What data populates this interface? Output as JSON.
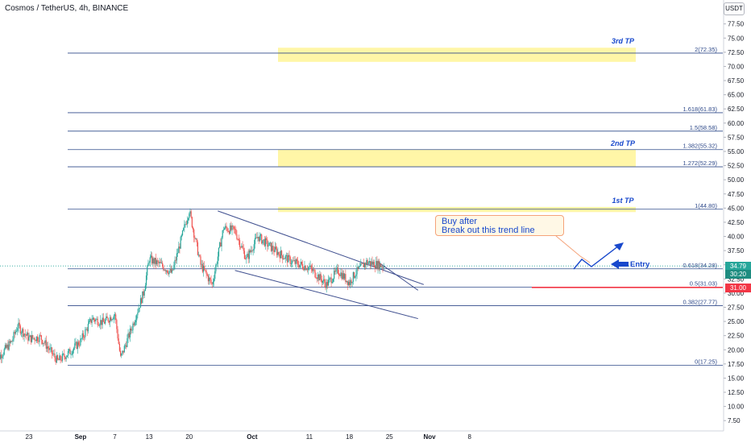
{
  "header": {
    "title": "Cosmos / TetherUS, 4h, BINANCE",
    "currency": "USDT"
  },
  "colors": {
    "up_candle": "#26a69a",
    "down_candle": "#ef5350",
    "fib_line": "#2f4a8a",
    "tp_zone": "#fff59d",
    "support_line": "#f23645",
    "channel_line": "#3f4f8f",
    "annotation_text": "#1848cc",
    "entry_arrow": "#1848cc",
    "last_price_bg": "#26a69a",
    "countdown_bg": "#1e8c80",
    "support_tag_bg": "#f23645"
  },
  "chart_data": {
    "type": "candlestick",
    "title": "Cosmos / TetherUS, 4h, BINANCE",
    "y_axis": {
      "ticks": [
        "77.50",
        "75.00",
        "72.50",
        "70.00",
        "67.50",
        "65.00",
        "62.50",
        "60.00",
        "57.50",
        "55.00",
        "52.50",
        "50.00",
        "47.50",
        "45.00",
        "42.50",
        "40.00",
        "37.50",
        "35.00",
        "32.50",
        "30.00",
        "27.50",
        "25.00",
        "22.50",
        "20.00",
        "17.50",
        "15.00",
        "12.50",
        "10.00",
        "7.50"
      ],
      "range": [
        6,
        80
      ]
    },
    "x_axis": {
      "ticks": [
        "23",
        "Sep",
        "7",
        "13",
        "20",
        "Oct",
        "11",
        "18",
        "25",
        "Nov",
        "8"
      ],
      "date_range": [
        "2021-08-23",
        "2021-11-08"
      ]
    },
    "price_path": [
      {
        "date": "2021-08-17",
        "price": 17.8
      },
      {
        "date": "2021-08-20",
        "price": 21.5
      },
      {
        "date": "2021-08-21",
        "price": 24.2
      },
      {
        "date": "2021-08-23",
        "price": 22.0
      },
      {
        "date": "2021-08-25",
        "price": 22.2
      },
      {
        "date": "2021-08-28",
        "price": 18.0
      },
      {
        "date": "2021-08-30",
        "price": 19.5
      },
      {
        "date": "2021-09-01",
        "price": 21.5
      },
      {
        "date": "2021-09-03",
        "price": 25.5
      },
      {
        "date": "2021-09-05",
        "price": 24.8
      },
      {
        "date": "2021-09-07",
        "price": 26.3
      },
      {
        "date": "2021-09-08",
        "price": 18.5
      },
      {
        "date": "2021-09-10",
        "price": 24.0
      },
      {
        "date": "2021-09-12",
        "price": 30.0
      },
      {
        "date": "2021-09-13",
        "price": 36.0
      },
      {
        "date": "2021-09-15",
        "price": 35.0
      },
      {
        "date": "2021-09-17",
        "price": 33.5
      },
      {
        "date": "2021-09-19",
        "price": 41.0
      },
      {
        "date": "2021-09-20",
        "price": 44.6
      },
      {
        "date": "2021-09-22",
        "price": 35.0
      },
      {
        "date": "2021-09-24",
        "price": 31.5
      },
      {
        "date": "2021-09-26",
        "price": 41.5
      },
      {
        "date": "2021-09-28",
        "price": 41.0
      },
      {
        "date": "2021-09-30",
        "price": 36.0
      },
      {
        "date": "2021-10-02",
        "price": 40.0
      },
      {
        "date": "2021-10-05",
        "price": 37.5
      },
      {
        "date": "2021-10-08",
        "price": 35.5
      },
      {
        "date": "2021-10-11",
        "price": 34.5
      },
      {
        "date": "2021-10-14",
        "price": 31.5
      },
      {
        "date": "2021-10-16",
        "price": 34.0
      },
      {
        "date": "2021-10-18",
        "price": 31.8
      },
      {
        "date": "2021-10-19",
        "price": 33.5
      },
      {
        "date": "2021-10-21",
        "price": 35.5
      },
      {
        "date": "2021-10-23",
        "price": 35.0
      },
      {
        "date": "2021-10-24",
        "price": 34.8
      }
    ],
    "last_price": "34.79",
    "countdown": "30:20",
    "fib_levels": [
      {
        "label": "2(72.35)",
        "price": 72.35
      },
      {
        "label": "1.618(61.83)",
        "price": 61.83
      },
      {
        "label": "1.5(58.58)",
        "price": 58.58
      },
      {
        "label": "1.382(55.32)",
        "price": 55.32
      },
      {
        "label": "1.272(52.29)",
        "price": 52.29
      },
      {
        "label": "1(44.80)",
        "price": 44.8
      },
      {
        "label": "0.618(34.28)",
        "price": 34.28
      },
      {
        "label": "0.5(31.03)",
        "price": 31.03
      },
      {
        "label": "0.382(27.77)",
        "price": 27.77
      },
      {
        "label": "0(17.25)",
        "price": 17.25
      }
    ],
    "tp_zones": [
      {
        "label": "3rd TP",
        "price_low": 70.8,
        "price_high": 73.3
      },
      {
        "label": "2nd TP",
        "price_low": 52.3,
        "price_high": 55.3
      },
      {
        "label": "1st TP",
        "price_low": 44.3,
        "price_high": 45.2
      }
    ],
    "support": {
      "price": 31.0,
      "label": "31.00"
    },
    "channel": {
      "upper": [
        {
          "date": "2021-09-25",
          "price": 44.5
        },
        {
          "date": "2021-10-31",
          "price": 31.5
        }
      ],
      "lower": [
        {
          "date": "2021-09-28",
          "price": 34.0
        },
        {
          "date": "2021-10-30",
          "price": 25.5
        }
      ],
      "mid_upper": [
        {
          "date": "2021-10-23",
          "price": 35.5
        },
        {
          "date": "2021-10-30",
          "price": 30.5
        }
      ]
    },
    "annotations": {
      "callout_line1": "Buy after",
      "callout_line2": "Break out this trend line",
      "entry": "Entry"
    }
  }
}
